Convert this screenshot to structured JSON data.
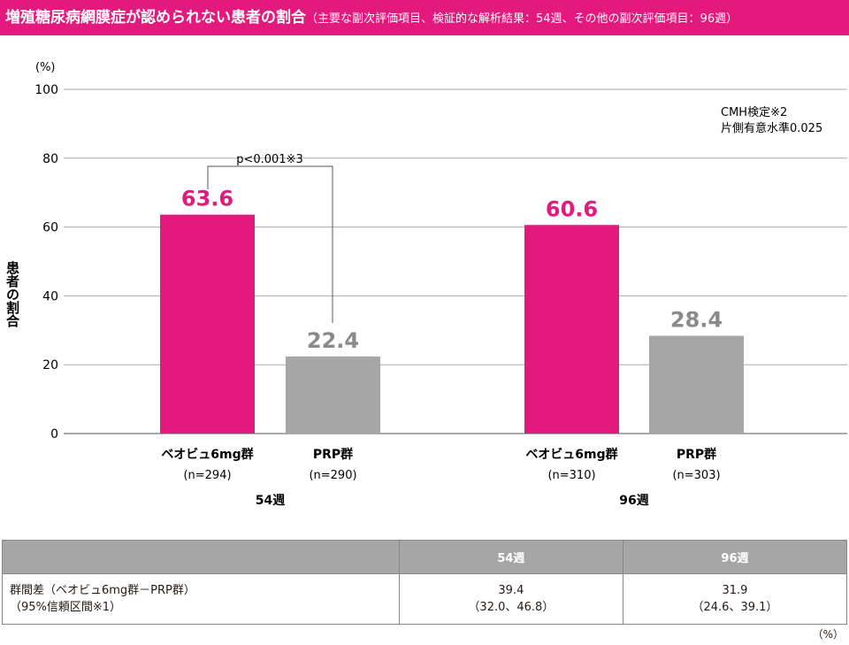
{
  "title": {
    "main": "増殖糖尿病網膜症が認められない患者の割合",
    "sub": "（主要な副次評価項目、検証的な解析結果：54週、その他の副次評価項目：96週）"
  },
  "chart_data": {
    "type": "bar",
    "ylabel": "患者の割合",
    "yunit": "(%)",
    "ylim": [
      0,
      100
    ],
    "yticks": [
      0,
      20,
      40,
      60,
      80,
      100
    ],
    "grid": true,
    "groups": [
      {
        "label": "54週",
        "bars": [
          {
            "name": "ベオビュ6mg群",
            "n": "(n=294)",
            "value": 63.6,
            "color": "#e4197e"
          },
          {
            "name": "PRP群",
            "n": "(n=290)",
            "value": 22.4,
            "color": "#a7a6a6"
          }
        ]
      },
      {
        "label": "96週",
        "bars": [
          {
            "name": "ベオビュ6mg群",
            "n": "(n=310)",
            "value": 60.6,
            "color": "#e4197e"
          },
          {
            "name": "PRP群",
            "n": "(n=303)",
            "value": 28.4,
            "color": "#a7a6a6"
          }
        ]
      }
    ],
    "annotation": "p<0.001※3",
    "note": [
      "CMH検定※2",
      "片側有意水準0.025"
    ]
  },
  "table": {
    "headers": [
      "",
      "54週",
      "96週"
    ],
    "row_label": [
      "群間差（ベオビュ6mg群－PRP群）",
      "（95%信頼区間※1）"
    ],
    "cells": [
      [
        "39.4",
        "（32.0、46.8）"
      ],
      [
        "31.9",
        "（24.6、39.1）"
      ]
    ],
    "unit": "（%）"
  }
}
